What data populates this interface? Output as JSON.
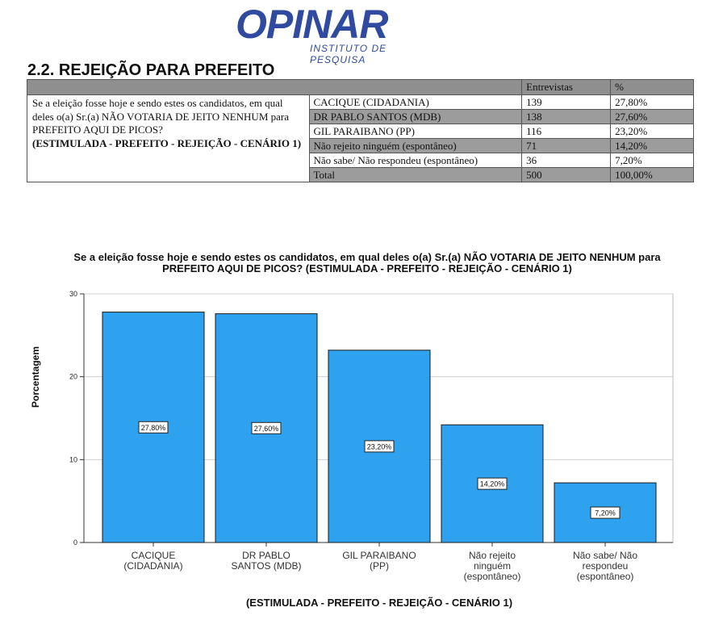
{
  "logo": {
    "word": "OPINAR",
    "subtitle": "INSTITUTO DE PESQUISA"
  },
  "section_title": "2.2. REJEIÇÃO PARA PREFEITO",
  "table": {
    "headers": [
      "Entrevistas",
      "%"
    ],
    "question": "Se a eleição fosse hoje e sendo estes os candidatos, em qual deles o(a) Sr.(a) NÃO VOTARIA DE JEITO NENHUM para PREFEITO AQUI DE PICOS?",
    "question_note": "(ESTIMULADA - PREFEITO - REJEIÇÃO - CENÁRIO 1)",
    "rows": [
      {
        "label": "CACIQUE (CIDADANIA)",
        "count": "139",
        "pct": "27,80%"
      },
      {
        "label": "DR PABLO SANTOS (MDB)",
        "count": "138",
        "pct": "27,60%"
      },
      {
        "label": "GIL PARAIBANO (PP)",
        "count": "116",
        "pct": "23,20%"
      },
      {
        "label": "Não rejeito ninguém (espontâneo)",
        "count": "71",
        "pct": "14,20%"
      },
      {
        "label": "Não sabe/ Não respondeu (espontâneo)",
        "count": "36",
        "pct": "7,20%"
      },
      {
        "label": "Total",
        "count": "500",
        "pct": "100,00%"
      }
    ]
  },
  "chart_data": {
    "type": "bar",
    "title": "Se a eleição fosse hoje e sendo estes os candidatos, em qual deles o(a) Sr.(a) NÃO VOTARIA DE JEITO NENHUM para PREFEITO AQUI DE PICOS? (ESTIMULADA - PREFEITO - REJEIÇÃO - CENÁRIO 1)",
    "xlabel": "(ESTIMULADA - PREFEITO - REJEIÇÃO - CENÁRIO 1)",
    "ylabel": "Porcentagem",
    "categories": [
      [
        "CACIQUE",
        "(CIDADANIA)"
      ],
      [
        "DR PABLO",
        "SANTOS (MDB)"
      ],
      [
        "GIL PARAIBANO",
        "(PP)"
      ],
      [
        "Não rejeito",
        "ninguém",
        "(espontâneo)"
      ],
      [
        "Não sabe/ Não",
        "respondeu",
        "(espontâneo)"
      ]
    ],
    "values": [
      27.8,
      27.6,
      23.2,
      14.2,
      7.2
    ],
    "data_labels": [
      "27,80%",
      "27,60%",
      "23,20%",
      "14,20%",
      "7,20%"
    ],
    "ylim": [
      0,
      30
    ],
    "yticks": [
      0,
      10,
      20,
      30
    ],
    "grid": true,
    "colors": {
      "bar": "#2ea2ee",
      "bar_stroke": "#1a1a1a",
      "grid": "#cfcfcf"
    }
  }
}
